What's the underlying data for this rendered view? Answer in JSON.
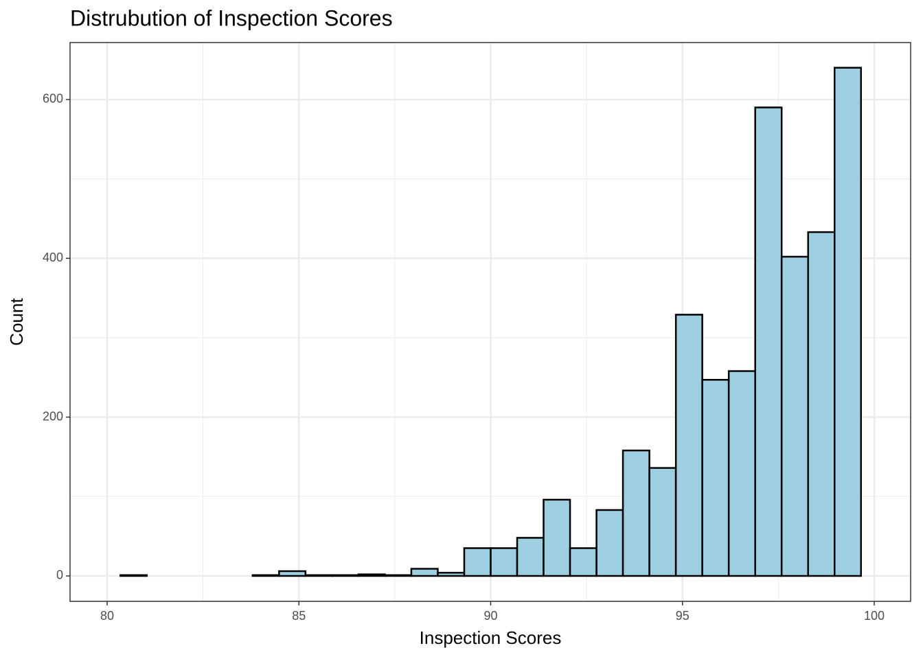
{
  "chart_data": {
    "type": "histogram",
    "title": "Distrubution of Inspection Scores",
    "x_label": "Inspection Scores",
    "y_label": "Count",
    "bins": [
      80.345,
      81.034,
      81.724,
      82.414,
      83.103,
      83.793,
      84.483,
      85.172,
      85.862,
      86.552,
      87.241,
      87.931,
      88.621,
      89.31,
      90.0,
      90.69,
      91.379,
      92.069,
      92.759,
      93.448,
      94.138,
      94.828,
      95.517,
      96.207,
      96.897,
      97.586,
      98.276,
      98.966,
      99.655
    ],
    "counts": [
      1,
      0,
      0,
      0,
      0,
      1,
      6,
      1,
      1,
      2,
      1,
      9,
      4,
      35,
      35,
      48,
      96,
      35,
      83,
      158,
      136,
      329,
      247,
      258,
      590,
      402,
      433,
      640
    ],
    "color": "#9ecfe0",
    "edge_color": "#000000",
    "xlim": [
      79.033,
      100.949
    ],
    "ylim": [
      -32,
      671.7
    ],
    "xticks": [
      80,
      85,
      90,
      95,
      100
    ],
    "yticks": [
      0,
      200,
      400,
      600
    ],
    "grid": true
  }
}
